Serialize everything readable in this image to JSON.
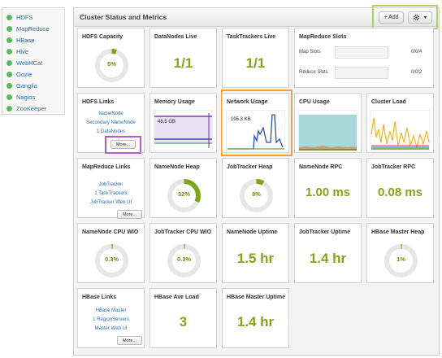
{
  "sidebar": {
    "items": [
      {
        "label": "HDFS"
      },
      {
        "label": "MapReduce"
      },
      {
        "label": "HBase"
      },
      {
        "label": "Hive"
      },
      {
        "label": "WebHCat"
      },
      {
        "label": "Oozie"
      },
      {
        "label": "Ganglia"
      },
      {
        "label": "Nagios"
      },
      {
        "label": "ZooKeeper"
      }
    ],
    "status_color": "#5cb85c"
  },
  "panel": {
    "title": "Cluster Status and Metrics",
    "add_label": "+ Add",
    "settings_icon": "gear-icon",
    "dropdown_icon": "caret-down-icon"
  },
  "cards": {
    "hdfs_capacity": {
      "title": "HDFS Capacity",
      "value": "5%",
      "fill": 0.05
    },
    "datanodes_live": {
      "title": "DataNodes Live",
      "value": "1/1"
    },
    "tasktrackers_live": {
      "title": "TaskTrackers Live",
      "value": "1/1"
    },
    "mapreduce_slots": {
      "title": "MapReduce Slots",
      "map_label": "Map Slots",
      "map_value": "0/0/4",
      "reduce_label": "Reduce Slots",
      "reduce_value": "0/0/2"
    },
    "hdfs_links": {
      "title": "HDFS Links",
      "links": [
        "NameNode",
        "Secondary NameNode",
        "1 DataNodes"
      ],
      "more": "More..."
    },
    "memory_usage": {
      "title": "Memory Usage",
      "label": "48.5 GB"
    },
    "network_usage": {
      "title": "Network Usage",
      "label": "195.3 KB"
    },
    "cpu_usage": {
      "title": "CPU Usage"
    },
    "cluster_load": {
      "title": "Cluster Load"
    },
    "mapreduce_links": {
      "title": "MapReduce Links",
      "links": [
        "JobTracker",
        "1 TaskTrackers",
        "JobTracker Web UI"
      ],
      "more": "More..."
    },
    "namenode_heap": {
      "title": "NameNode Heap",
      "value": "32%",
      "fill": 0.32
    },
    "jobtracker_heap": {
      "title": "JobTracker Heap",
      "value": "8%",
      "fill": 0.08
    },
    "namenode_rpc": {
      "title": "NameNode RPC",
      "value": "1.00 ms"
    },
    "jobtracker_rpc": {
      "title": "JobTracker RPC",
      "value": "0.08 ms"
    },
    "namenode_cpu_wio": {
      "title": "NameNode CPU WIO",
      "value": "0.3%",
      "fill": 0.003
    },
    "jobtracker_cpu_wio": {
      "title": "JobTracker CPU WIO",
      "value": "0.3%",
      "fill": 0.003
    },
    "namenode_uptime": {
      "title": "NameNode Uptime",
      "value": "1.5 hr"
    },
    "jobtracker_uptime": {
      "title": "JobTracker Uptime",
      "value": "1.4 hr"
    },
    "hbase_master_heap": {
      "title": "HBase Master Heap",
      "value": "1%",
      "fill": 0.01
    },
    "hbase_links": {
      "title": "HBase Links",
      "links": [
        "HBase Master",
        "1 RegionServers",
        "Master Web UI"
      ],
      "more": "More..."
    },
    "hbase_ave_load": {
      "title": "HBase Ave Load",
      "value": "3"
    },
    "hbase_master_uptime": {
      "title": "HBase Master Uptime",
      "value": "1.4 hr"
    }
  },
  "colors": {
    "accent_green": "#7fa61a",
    "gauge_track": "#e6e6e6",
    "link_blue": "#2a6db8",
    "highlight_green": "#a8d25a",
    "highlight_purple": "#b35cd1",
    "highlight_orange": "#f0a040"
  }
}
